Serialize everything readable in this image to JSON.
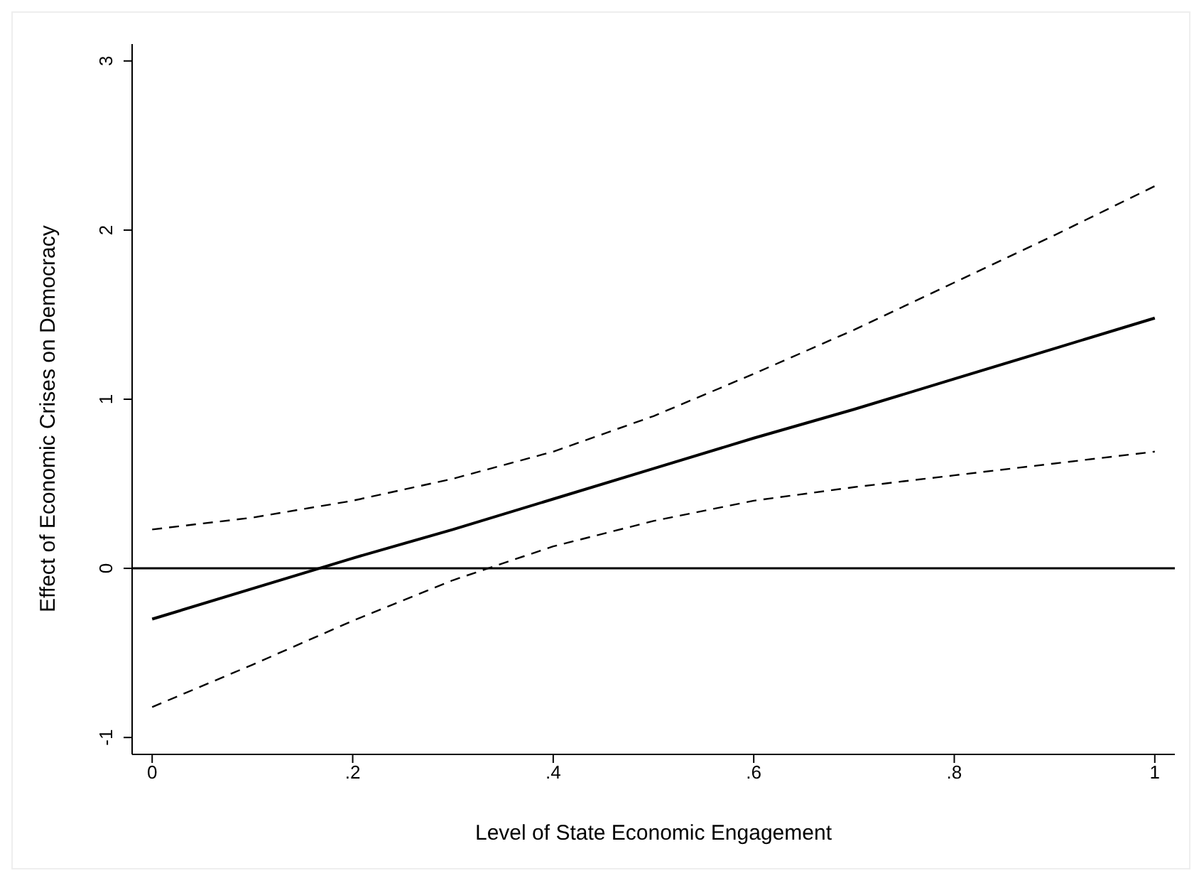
{
  "chart_data": {
    "type": "line",
    "xlabel": "Level of State Economic Engagement",
    "ylabel": "Effect of Economic Crises on Democracy",
    "x": [
      0,
      0.1,
      0.2,
      0.3,
      0.4,
      0.5,
      0.6,
      0.7,
      0.8,
      0.9,
      1
    ],
    "series": [
      {
        "color": "#000000",
        "line_style": "solid",
        "values": [
          -0.3,
          -0.12,
          0.06,
          0.23,
          0.41,
          0.59,
          0.77,
          0.94,
          1.12,
          1.3,
          1.48
        ]
      },
      {
        "color": "#000000",
        "line_style": "dashed",
        "values": [
          0.23,
          0.3,
          0.4,
          0.53,
          0.69,
          0.9,
          1.15,
          1.41,
          1.69,
          1.97,
          2.26
        ]
      },
      {
        "color": "#000000",
        "line_style": "dashed",
        "values": [
          -0.82,
          -0.57,
          -0.31,
          -0.07,
          0.13,
          0.28,
          0.4,
          0.48,
          0.55,
          0.62,
          0.69
        ]
      }
    ],
    "xlim": [
      -0.02,
      1.02
    ],
    "xticks": [
      0,
      {
        "value": 0.2,
        "label": ".2"
      },
      {
        "value": 0.4,
        "label": ".4"
      },
      {
        "value": 0.6,
        "label": ".6"
      },
      {
        "value": 0.8,
        "label": ".8"
      },
      1
    ],
    "ylim": [
      -1.1,
      3.1
    ],
    "yticks": [
      -1,
      0,
      1,
      2,
      3
    ],
    "ref_lines": [
      {
        "axis": "y",
        "value": 0,
        "color": "#000000"
      }
    ],
    "grid": false,
    "legend": false,
    "marker": "none"
  }
}
